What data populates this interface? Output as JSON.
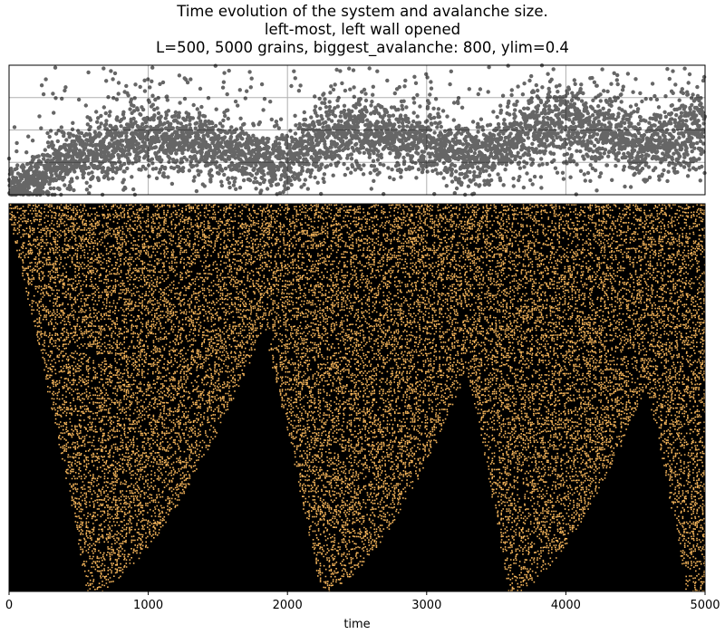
{
  "title_lines": [
    "Time evolution of the system and avalanche size.",
    "left-most, left wall opened",
    "L=500, 5000 grains, biggest_avalanche: 800, ylim=0.4"
  ],
  "colors": {
    "scatter_points": "#000000",
    "heatmap_background": "#000000",
    "heatmap_grain": "#f4b45a",
    "grid": "#b0b0b0"
  },
  "chart_data": [
    {
      "type": "scatter",
      "title": "",
      "xlabel": "",
      "ylabel": "",
      "xlim": [
        0,
        5000
      ],
      "ylim": [
        0,
        0.4
      ],
      "grid": true,
      "y_tick_labels_shown": false,
      "x_tick_labels_shown": false,
      "series": [
        {
          "trend_x": [
            0,
            250,
            500,
            750,
            1000,
            1250,
            1500,
            1750,
            2000,
            2250,
            2500,
            2750,
            3000,
            3250,
            3500,
            3750,
            4000,
            4250,
            4500,
            4750,
            5000
          ],
          "trend_y": [
            0.02,
            0.07,
            0.12,
            0.15,
            0.17,
            0.17,
            0.15,
            0.11,
            0.11,
            0.17,
            0.19,
            0.18,
            0.16,
            0.12,
            0.14,
            0.2,
            0.21,
            0.19,
            0.15,
            0.17,
            0.21
          ],
          "outlier_max_y": 0.4
        }
      ]
    },
    {
      "type": "heatmap",
      "title": "",
      "xlabel": "time",
      "ylabel": "",
      "xlim": [
        0,
        5000
      ],
      "x_ticks": [
        0,
        1000,
        2000,
        3000,
        4000,
        5000
      ],
      "x_tick_labels": [
        "0",
        "1000",
        "2000",
        "3000",
        "4000",
        "5000"
      ],
      "empty_region_bounds": [
        {
          "start_time": 0,
          "peak_time": 0,
          "end_time": 560,
          "peak_fraction_from_top": 0.02
        },
        {
          "start_time": 560,
          "peak_time": 1830,
          "end_time": 2230,
          "peak_fraction_from_top": 0.31
        },
        {
          "start_time": 2230,
          "peak_time": 3290,
          "end_time": 3590,
          "peak_fraction_from_top": 0.42
        },
        {
          "start_time": 3590,
          "peak_time": 4580,
          "end_time": 4870,
          "peak_fraction_from_top": 0.46
        }
      ]
    }
  ]
}
